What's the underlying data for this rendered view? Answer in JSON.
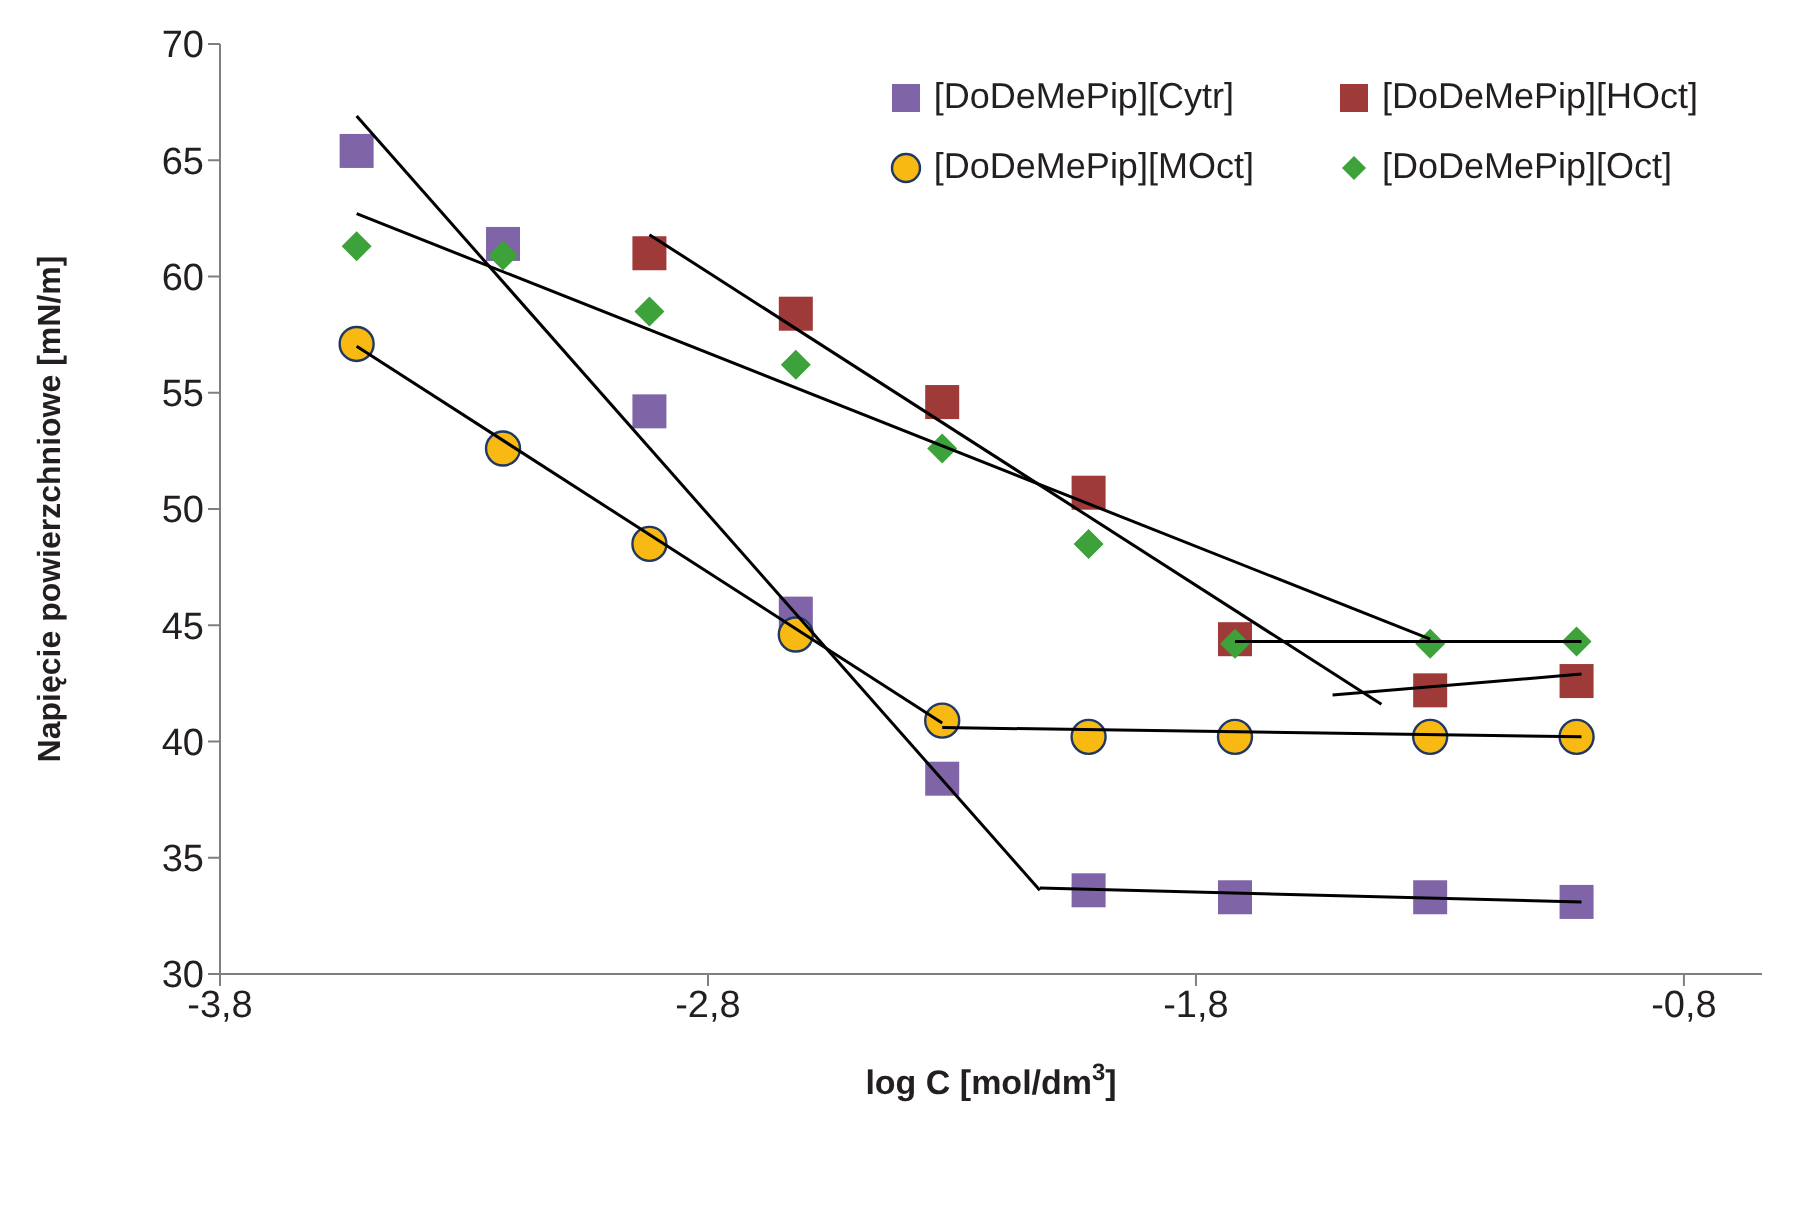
{
  "chart_data": {
    "type": "scatter",
    "xlabel": "log C [mol/dm$^{3}$]",
    "ylabel": "Napięcie powierzchniowe [mN/m]",
    "xlim": [
      -3.8,
      -0.64
    ],
    "xticks": [
      {
        "value": -3.8,
        "label": "-3,8"
      },
      {
        "value": -2.8,
        "label": "-2,8"
      },
      {
        "value": -1.8,
        "label": "-1,8"
      },
      {
        "value": -0.8,
        "label": "-0,8"
      }
    ],
    "ylim": [
      30,
      70
    ],
    "yticks": [
      30,
      35,
      40,
      45,
      50,
      55,
      60,
      65,
      70
    ],
    "grid": false,
    "legend": "top right",
    "series": [
      {
        "name": "[DoDeMePip][Cytr]",
        "color": "#7f65a8",
        "marker": "square",
        "x": [
          -3.52,
          -3.22,
          -2.92,
          -2.62,
          -2.32,
          -2.02,
          -1.72,
          -1.32,
          -1.02
        ],
        "values": [
          65.4,
          61.4,
          54.2,
          45.5,
          38.4,
          33.6,
          33.3,
          33.3,
          33.1
        ]
      },
      {
        "name": "[DoDeMePip][HOct]",
        "color": "#9e3a38",
        "marker": "square",
        "x": [
          -2.92,
          -2.62,
          -2.32,
          -2.02,
          -1.72,
          -1.32,
          -1.02
        ],
        "values": [
          61.0,
          58.4,
          54.6,
          50.7,
          44.4,
          42.2,
          42.6
        ]
      },
      {
        "name": "[DoDeMePip][MOct]",
        "color": "#f7b912",
        "marker": "circle",
        "x": [
          -3.52,
          -3.22,
          -2.92,
          -2.62,
          -2.32,
          -2.02,
          -1.72,
          -1.32,
          -1.02
        ],
        "values": [
          57.1,
          52.6,
          48.5,
          44.6,
          40.9,
          40.2,
          40.2,
          40.2,
          40.2
        ]
      },
      {
        "name": "[DoDeMePip][Oct]",
        "color": "#3da23a",
        "marker": "diamond",
        "x": [
          -3.52,
          -3.22,
          -2.92,
          -2.62,
          -2.32,
          -2.02,
          -1.72,
          -1.32,
          -1.02
        ],
        "values": [
          61.3,
          60.9,
          58.5,
          56.2,
          52.6,
          48.5,
          44.2,
          44.2,
          44.3
        ]
      },
      {
        "type": "line",
        "color": "#000000",
        "marker": "none",
        "x": [
          -3.52,
          -2.12
        ],
        "values": [
          66.9,
          33.6
        ]
      },
      {
        "type": "line",
        "color": "#000000",
        "marker": "none",
        "x": [
          -2.12,
          -1.01
        ],
        "values": [
          33.7,
          33.1
        ]
      },
      {
        "type": "line",
        "color": "#000000",
        "marker": "none",
        "x": [
          -2.92,
          -1.42
        ],
        "values": [
          61.8,
          41.6
        ]
      },
      {
        "type": "line",
        "color": "#000000",
        "marker": "none",
        "x": [
          -1.52,
          -1.01
        ],
        "values": [
          42.0,
          42.9
        ]
      },
      {
        "type": "line",
        "color": "#000000",
        "marker": "none",
        "x": [
          -3.52,
          -1.32
        ],
        "values": [
          62.7,
          44.4
        ]
      },
      {
        "type": "line",
        "color": "#000000",
        "marker": "none",
        "x": [
          -1.72,
          -1.01
        ],
        "values": [
          44.3,
          44.3
        ]
      },
      {
        "type": "line",
        "color": "#000000",
        "marker": "none",
        "x": [
          -3.52,
          -2.32
        ],
        "values": [
          57.0,
          40.8
        ]
      },
      {
        "type": "line",
        "color": "#000000",
        "marker": "none",
        "x": [
          -2.32,
          -1.01
        ],
        "values": [
          40.6,
          40.2
        ]
      }
    ]
  }
}
